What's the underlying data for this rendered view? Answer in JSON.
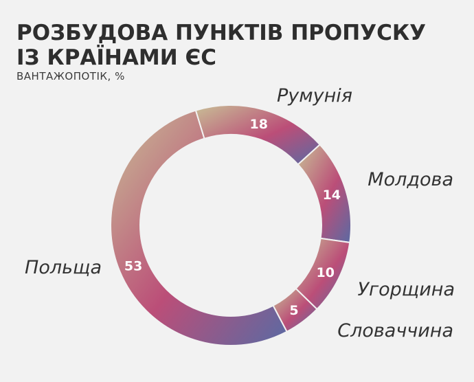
{
  "header": {
    "title_line1": "РОЗБУДОВА ПУНКТІВ ПРОПУСКУ",
    "title_line2": "ІЗ КРАЇНАМИ ЄС",
    "subtitle": "ВАНТАЖОПОТІК, %"
  },
  "colors": {
    "gradient_start": "#c8bf96",
    "gradient_mid": "#bb4e78",
    "gradient_end": "#5a6aa3",
    "separator": "#f2f2f2",
    "label_text": "#333333",
    "value_text": "#ffffff"
  },
  "chart_data": {
    "type": "pie",
    "donut": true,
    "title": "РОЗБУДОВА ПУНКТІВ ПРОПУСКУ ІЗ КРАЇНАМИ ЄС",
    "subtitle": "ВАНТАЖОПОТІК, %",
    "categories": [
      "Румунія",
      "Молдова",
      "Угорщина",
      "Словаччина",
      "Польща"
    ],
    "values": [
      18,
      14,
      10,
      5,
      53
    ],
    "unit": "%"
  }
}
